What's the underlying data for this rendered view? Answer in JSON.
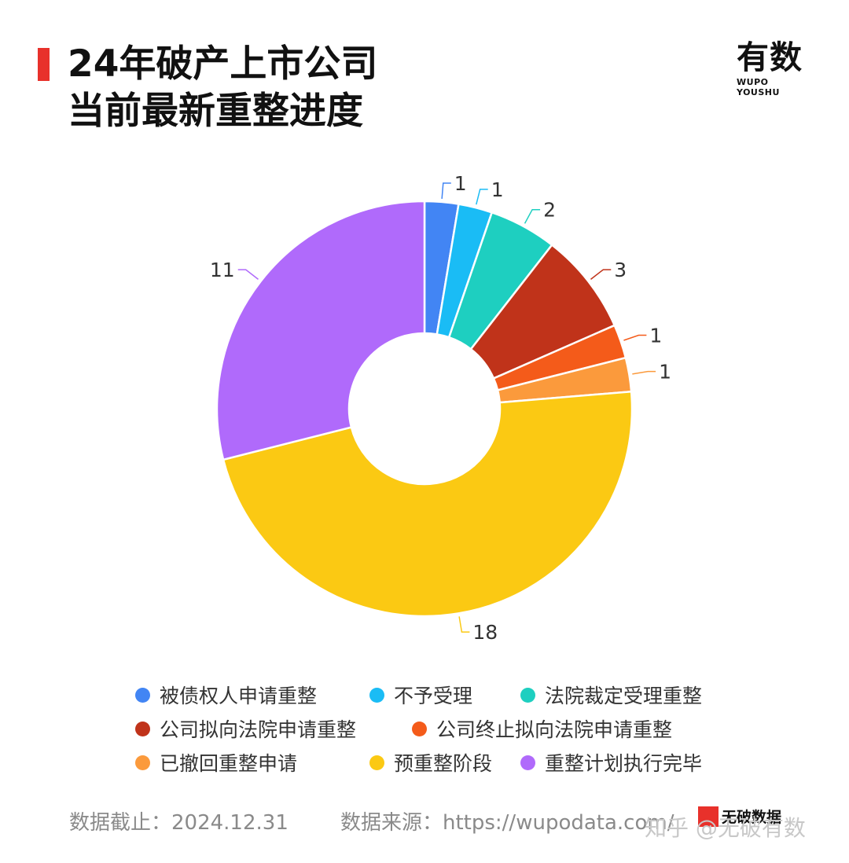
{
  "header": {
    "title_line1": "24年破产上市公司",
    "title_line2": "当前最新重整进度"
  },
  "logo": {
    "main": "有数",
    "sub": "WUPO YOUSHU"
  },
  "chart_data": {
    "type": "pie",
    "donut": true,
    "categories": [
      "被债权人申请重整",
      "不予受理",
      "法院裁定受理重整",
      "公司拟向法院申请重整",
      "公司终止拟向法院申请重整",
      "已撤回重整申请",
      "预重整阶段",
      "重整计划执行完毕"
    ],
    "values": [
      1,
      1,
      2,
      3,
      1,
      1,
      18,
      11
    ],
    "colors": [
      "#4285f4",
      "#1abcf5",
      "#1ecfc0",
      "#c0331a",
      "#f45b1a",
      "#fb9a3c",
      "#fbc913",
      "#b06afb"
    ],
    "legend_position": "bottom"
  },
  "footer": {
    "date": "数据截止：2024.12.31",
    "source": "数据来源：https://wupodata.com/"
  },
  "watermark": {
    "text": "知乎 @无破有数",
    "brand": "无破数据"
  }
}
